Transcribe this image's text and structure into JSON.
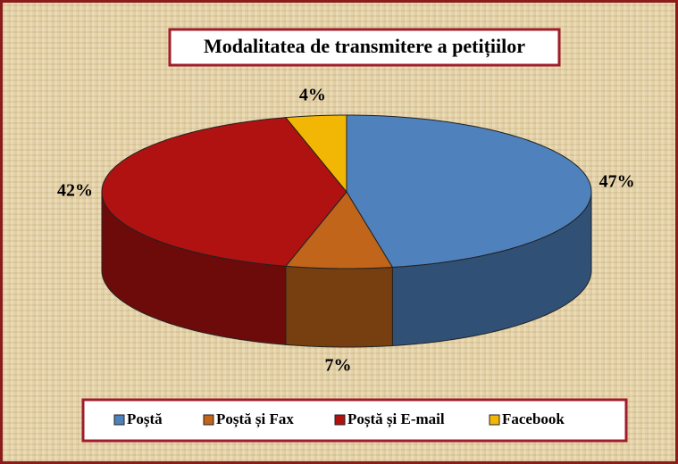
{
  "chart_data": {
    "type": "pie3d",
    "title": "Modalitatea de transmitere a petițiilor",
    "categories": [
      "Poștă",
      "Poștă și Fax",
      "Poștă și E-mail",
      "Facebook"
    ],
    "values": [
      47,
      7,
      42,
      4
    ],
    "value_labels": [
      "47%",
      "7%",
      "42%",
      "4%"
    ],
    "colors": [
      "#4f81bd",
      "#c0651a",
      "#b01212",
      "#f2b705"
    ],
    "legend": "bottom"
  }
}
